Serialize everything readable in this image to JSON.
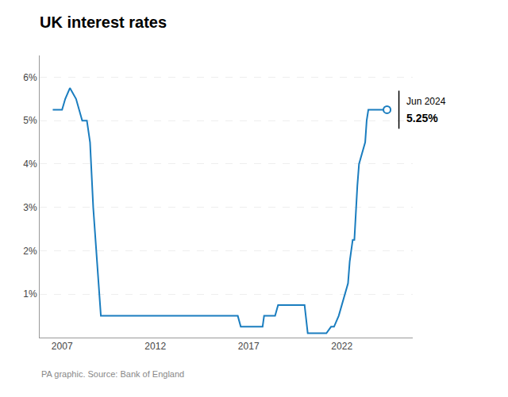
{
  "chart_data": {
    "type": "line",
    "title": "UK interest rates",
    "footnote": "PA graphic. Source: Bank of England",
    "annotations": [
      "Jun 2024",
      "5.25%"
    ],
    "color": "#1a7dbf",
    "x": [
      2006.5,
      2007.0,
      2007.17,
      2007.42,
      2007.75,
      2007.92,
      2008.08,
      2008.33,
      2008.5,
      2008.67,
      2008.83,
      2008.92,
      2009.0,
      2009.08,
      2009.25,
      2016.42,
      2016.58,
      2016.75,
      2017.75,
      2017.83,
      2018.0,
      2018.42,
      2018.58,
      2019.0,
      2020.0,
      2020.17,
      2020.25,
      2021.17,
      2021.42,
      2021.58,
      2021.83,
      2022.0,
      2022.17,
      2022.33,
      2022.42,
      2022.58,
      2022.67,
      2022.75,
      2022.83,
      2022.92,
      2023.08,
      2023.25,
      2023.33,
      2023.42,
      2024.42
    ],
    "values": [
      5.25,
      5.25,
      5.5,
      5.75,
      5.5,
      5.25,
      5.0,
      5.0,
      4.5,
      3.0,
      2.0,
      1.5,
      1.0,
      0.5,
      0.5,
      0.5,
      0.25,
      0.25,
      0.25,
      0.5,
      0.5,
      0.5,
      0.75,
      0.75,
      0.75,
      0.1,
      0.1,
      0.1,
      0.25,
      0.25,
      0.5,
      0.75,
      1.0,
      1.25,
      1.75,
      2.25,
      2.25,
      3.0,
      3.5,
      4.0,
      4.25,
      4.5,
      5.0,
      5.25,
      5.25
    ],
    "xlim": [
      2005.8,
      2025.8
    ],
    "xticks": [
      2007,
      2012,
      2017,
      2022
    ],
    "ylim": [
      0,
      6.5
    ],
    "yticks": [
      {
        "value": 1,
        "label": "1%"
      },
      {
        "value": 2,
        "label": "2%"
      },
      {
        "value": 3,
        "label": "3%"
      },
      {
        "value": 4,
        "label": "4%"
      },
      {
        "value": 5,
        "label": "5%"
      },
      {
        "value": 6,
        "label": "6%"
      }
    ],
    "grid": true
  }
}
